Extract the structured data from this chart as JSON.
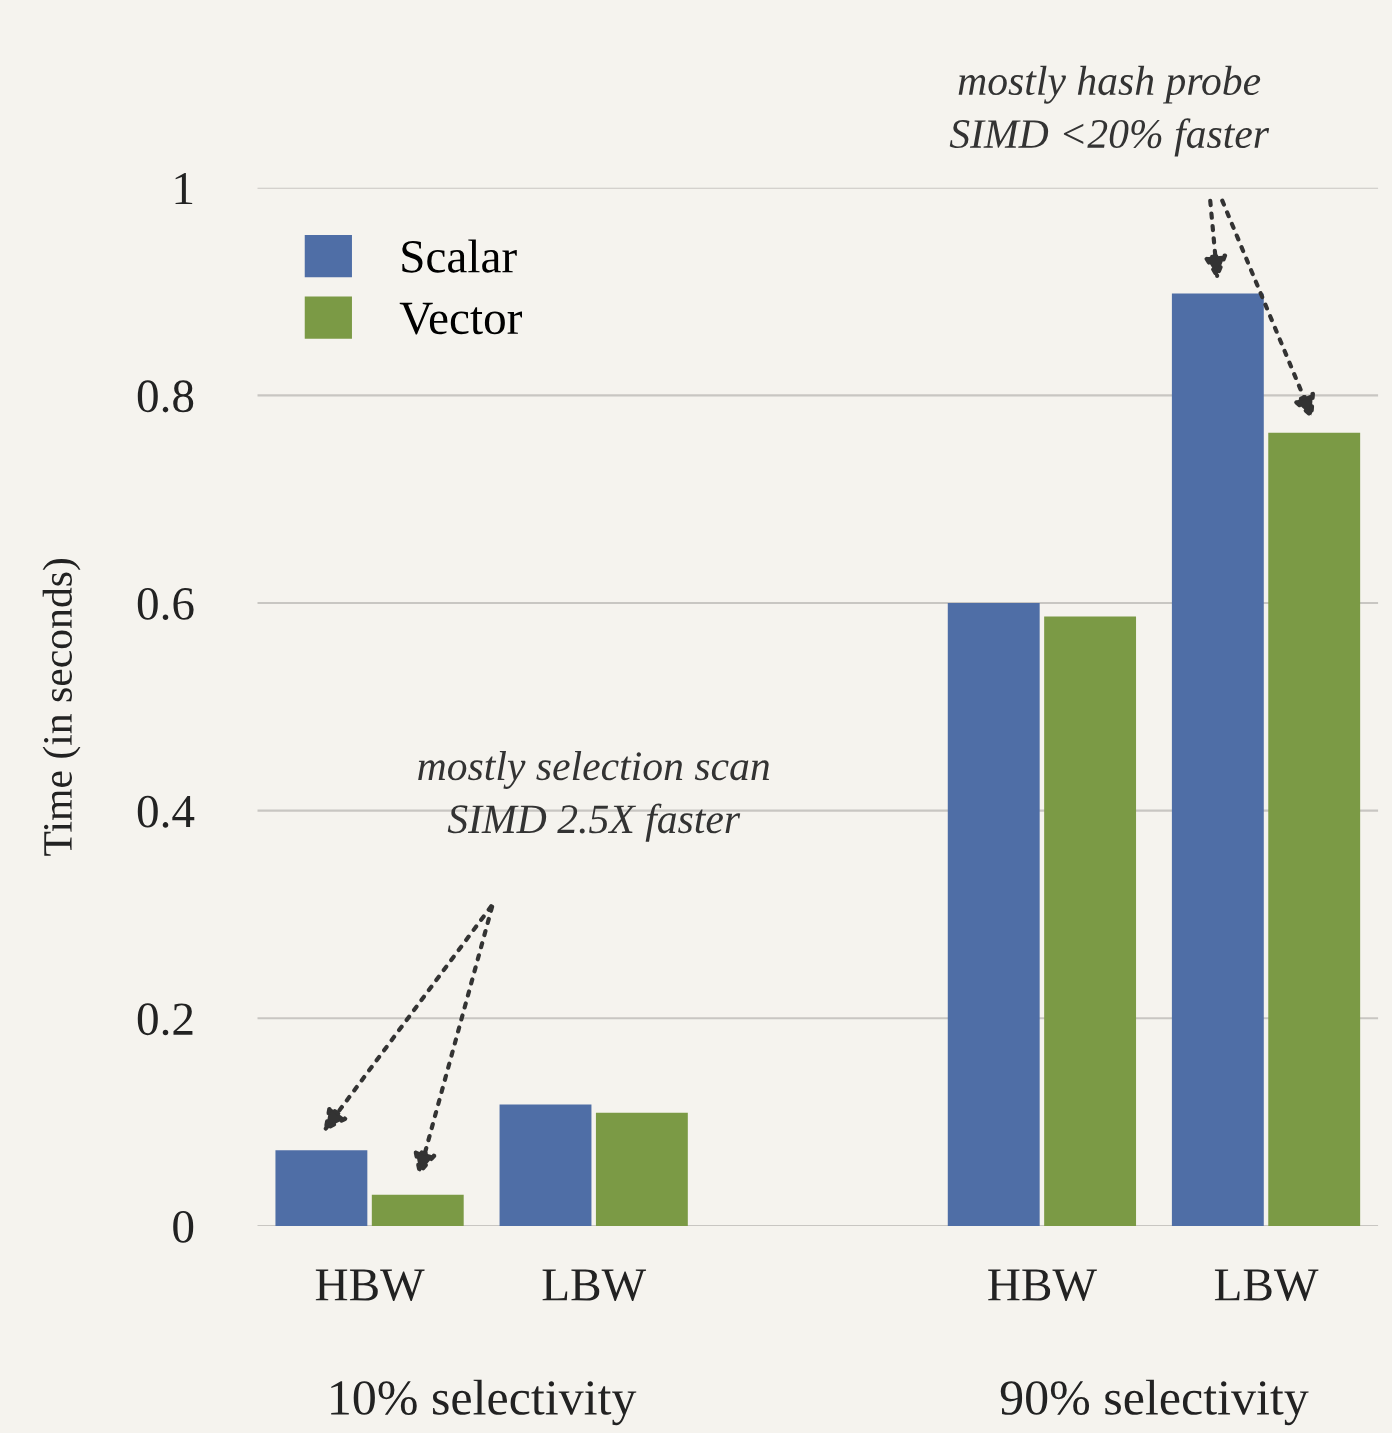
{
  "chart_data": {
    "type": "bar",
    "ylabel": "Time (in seconds)",
    "categories": [
      "HBW",
      "LBW",
      null,
      "HBW",
      "LBW"
    ],
    "series": [
      {
        "name": "Scalar",
        "color": "#4f6ea6",
        "values": [
          0.073,
          0.117,
          null,
          0.6,
          0.898
        ]
      },
      {
        "name": "Vector",
        "color": "#7b9a45",
        "values": [
          0.03,
          0.109,
          null,
          0.587,
          0.764
        ]
      }
    ],
    "ylim": [
      0,
      1
    ],
    "yticks": [
      0,
      0.2,
      0.4,
      0.6,
      0.8,
      1
    ],
    "grid": "y",
    "legend": "top left",
    "annotations": [
      "10% selectivity",
      "90% selectivity",
      "mostly selection scan\nSIMD 2.5X faster",
      "mostly hash probe\nSIMD <20% faster"
    ]
  }
}
